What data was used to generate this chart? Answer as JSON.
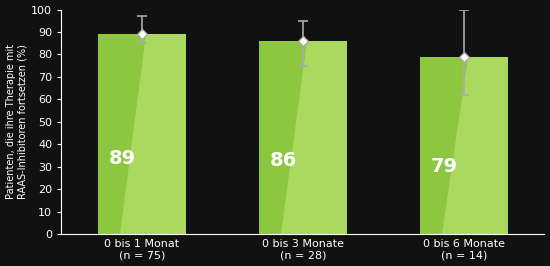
{
  "categories": [
    "0 bis 1 Monat\n(n = 75)",
    "0 bis 3 Monate\n(n = 28)",
    "0 bis 6 Monate\n(n = 14)"
  ],
  "values": [
    89,
    86,
    79
  ],
  "error_upper": [
    97,
    95,
    100
  ],
  "error_lower": [
    85,
    75,
    62
  ],
  "bar_color": "#8dc63f",
  "bar_highlight_color": "#c5e87a",
  "background_color": "#111111",
  "text_color": "#ffffff",
  "error_color": "#aaaaaa",
  "ylabel": "Patienten, die ihre Therapie mit\nRAAS-Inhibitoren fortsetzen (%)",
  "ylim": [
    0,
    100
  ],
  "yticks": [
    0,
    10,
    20,
    30,
    40,
    50,
    60,
    70,
    80,
    90,
    100
  ],
  "value_fontsize": 14,
  "tick_fontsize": 8,
  "ylabel_fontsize": 7
}
